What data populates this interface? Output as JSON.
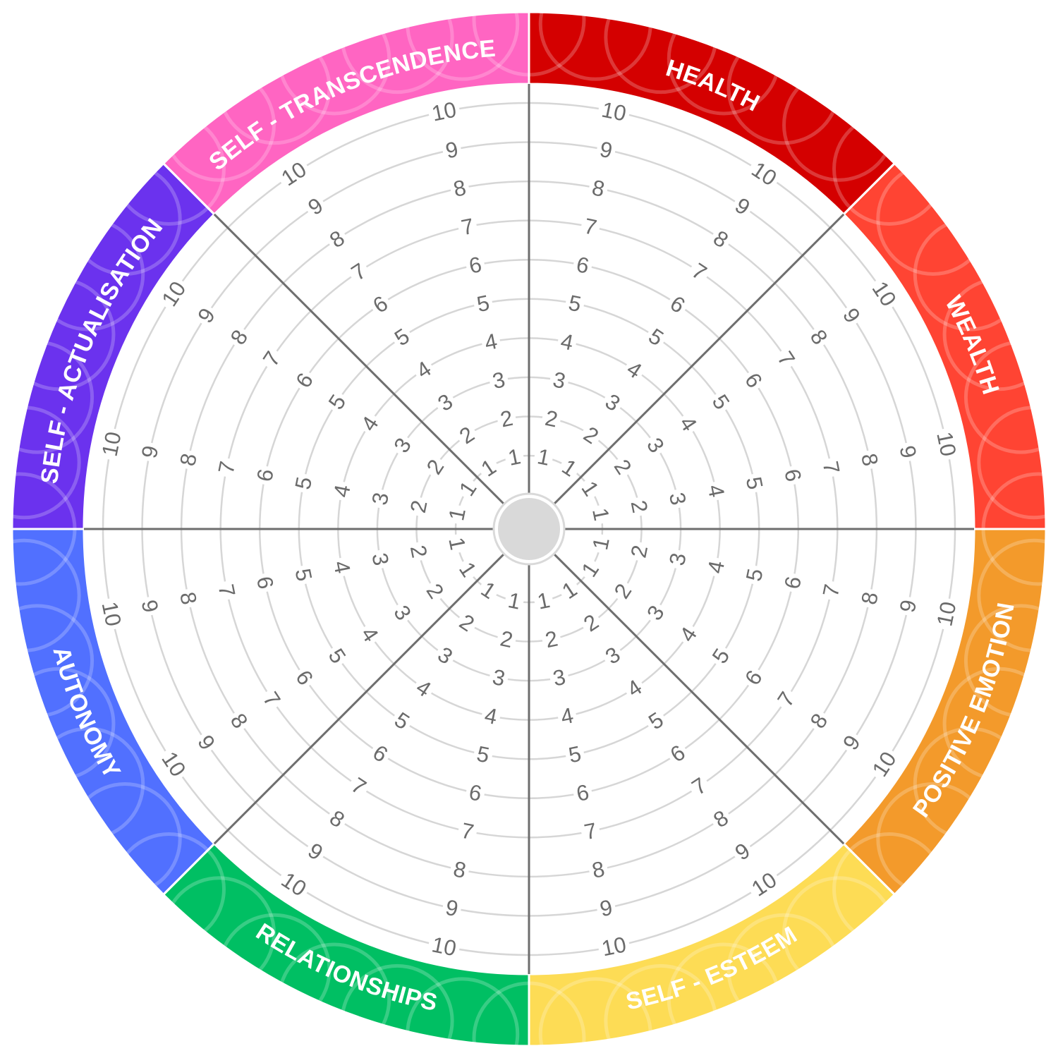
{
  "wheel": {
    "segments": [
      {
        "label": "HEALTH",
        "color": "#d40000"
      },
      {
        "label": "WEALTH",
        "color": "#ff4433"
      },
      {
        "label": "POSITIVE EMOTION",
        "color": "#f39a2b"
      },
      {
        "label": "SELF - ESTEEM",
        "color": "#fddc55"
      },
      {
        "label": "RELATIONSHIPS",
        "color": "#00bf63"
      },
      {
        "label": "AUTONOMY",
        "color": "#5170ff"
      },
      {
        "label": "SELF - ACTUALISATION",
        "color": "#6b32ee"
      },
      {
        "label": "SELF - TRANSCENDENCE",
        "color": "#ff65c2"
      }
    ],
    "scale": [
      "1",
      "2",
      "3",
      "4",
      "5",
      "6",
      "7",
      "8",
      "9",
      "10"
    ],
    "ring_color": "#d6d6d6",
    "spoke_color": "#6e6e6e",
    "hub_color": "#d9d9d9"
  }
}
